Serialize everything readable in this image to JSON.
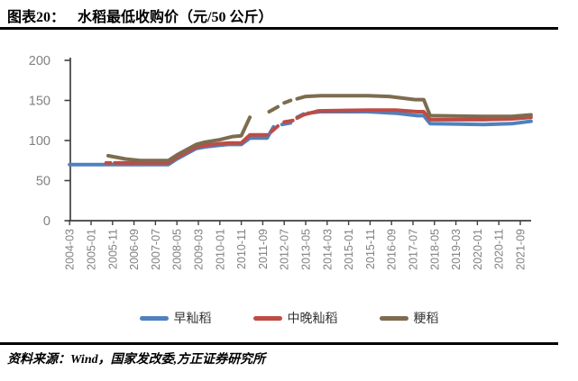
{
  "figure": {
    "number": "图表20：",
    "title": "水稻最低收购价（元/50 公斤）"
  },
  "source_note": "资料来源：Wind，国家发改委,方正证券研究所",
  "colors": {
    "early_indica": "#4F81BD",
    "mid_late_indica": "#BF4B45",
    "japonica": "#7D6C4F",
    "axis": "#3F3F3F",
    "tick_label": "#808080",
    "rule": "#000000"
  },
  "chart_data": {
    "type": "line",
    "title": "水稻最低收购价（元/50 公斤）",
    "ylabel": "元/50公斤",
    "grid": false,
    "legend_position": "bottom",
    "y_axis": {
      "min": 0,
      "max": 200,
      "ticks": [
        0,
        50,
        100,
        150,
        200
      ]
    },
    "x_axis": {
      "unit": "months since 2004-03",
      "months_per_tick": 10,
      "tick_labels": [
        "2004-03",
        "2005-01",
        "2005-11",
        "2006-09",
        "2007-07",
        "2008-05",
        "2009-03",
        "2010-01",
        "2010-11",
        "2011-09",
        "2012-07",
        "2013-05",
        "2014-03",
        "2015-01",
        "2015-11",
        "2016-09",
        "2017-07",
        "2018-05",
        "2019-03",
        "2020-01",
        "2020-11",
        "2021-09"
      ]
    },
    "series": [
      {
        "name": "早籼稻",
        "key": "early-indica-rice",
        "color": "#4F81BD",
        "segments": [
          [
            [
              0,
              70
            ],
            [
              46,
              70
            ],
            [
              50,
              77
            ],
            [
              59,
              90
            ],
            [
              63,
              92
            ],
            [
              70,
              94
            ],
            [
              74,
              95
            ],
            [
              80,
              95
            ],
            [
              84,
              103
            ],
            [
              92,
              103
            ],
            [
              95,
              117
            ]
          ],
          [
            [
              99,
              120
            ],
            [
              103,
              122
            ]
          ],
          [
            [
              106,
              129
            ],
            [
              109,
              133
            ]
          ],
          [
            [
              111,
              134
            ],
            [
              117,
              136
            ],
            [
              139,
              136
            ],
            [
              152,
              134
            ],
            [
              162,
              131
            ],
            [
              165,
              131
            ],
            [
              168,
              121
            ],
            [
              193,
              120
            ],
            [
              206,
              121
            ],
            [
              215,
              124
            ]
          ]
        ]
      },
      {
        "name": "中晚籼稻",
        "key": "mid-late-indica-rice",
        "color": "#BF4B45",
        "segments": [
          [
            [
              17,
              72
            ],
            [
              19,
              72
            ]
          ],
          [
            [
              21,
              72
            ],
            [
              46,
              72
            ],
            [
              50,
              79
            ],
            [
              59,
              92
            ],
            [
              63,
              94
            ],
            [
              70,
              96
            ],
            [
              74,
              97
            ],
            [
              80,
              97
            ],
            [
              84,
              107
            ],
            [
              92,
              107
            ]
          ],
          [
            [
              94,
              111
            ],
            [
              97,
              118
            ]
          ],
          [
            [
              100,
              123
            ],
            [
              104,
              125
            ]
          ],
          [
            [
              106,
              128
            ],
            [
              109,
              132
            ],
            [
              116,
              137
            ],
            [
              139,
              138
            ],
            [
              152,
              138
            ],
            [
              162,
              136
            ],
            [
              165,
              136
            ],
            [
              168,
              126
            ],
            [
              193,
              126
            ],
            [
              206,
              127
            ],
            [
              215,
              129
            ]
          ]
        ]
      },
      {
        "name": "粳稻",
        "key": "japonica-rice",
        "color": "#7D6C4F",
        "segments": [
          [
            [
              18,
              81
            ],
            [
              26,
              77
            ],
            [
              33,
              75
            ],
            [
              46,
              75
            ],
            [
              50,
              82
            ],
            [
              59,
              95
            ],
            [
              63,
              98
            ],
            [
              70,
              101
            ],
            [
              76,
              105
            ],
            [
              80,
              106
            ],
            [
              84,
              129
            ]
          ],
          [
            [
              93,
              136
            ],
            [
              97,
              142
            ]
          ],
          [
            [
              100,
              147
            ],
            [
              103,
              150
            ]
          ],
          [
            [
              106,
              152
            ],
            [
              110,
              155
            ],
            [
              117,
              156
            ],
            [
              139,
              156
            ],
            [
              149,
              155
            ],
            [
              161,
              151
            ],
            [
              165,
              151
            ],
            [
              168,
              131
            ],
            [
              193,
              130
            ],
            [
              206,
              130
            ],
            [
              215,
              132
            ]
          ]
        ]
      }
    ]
  }
}
